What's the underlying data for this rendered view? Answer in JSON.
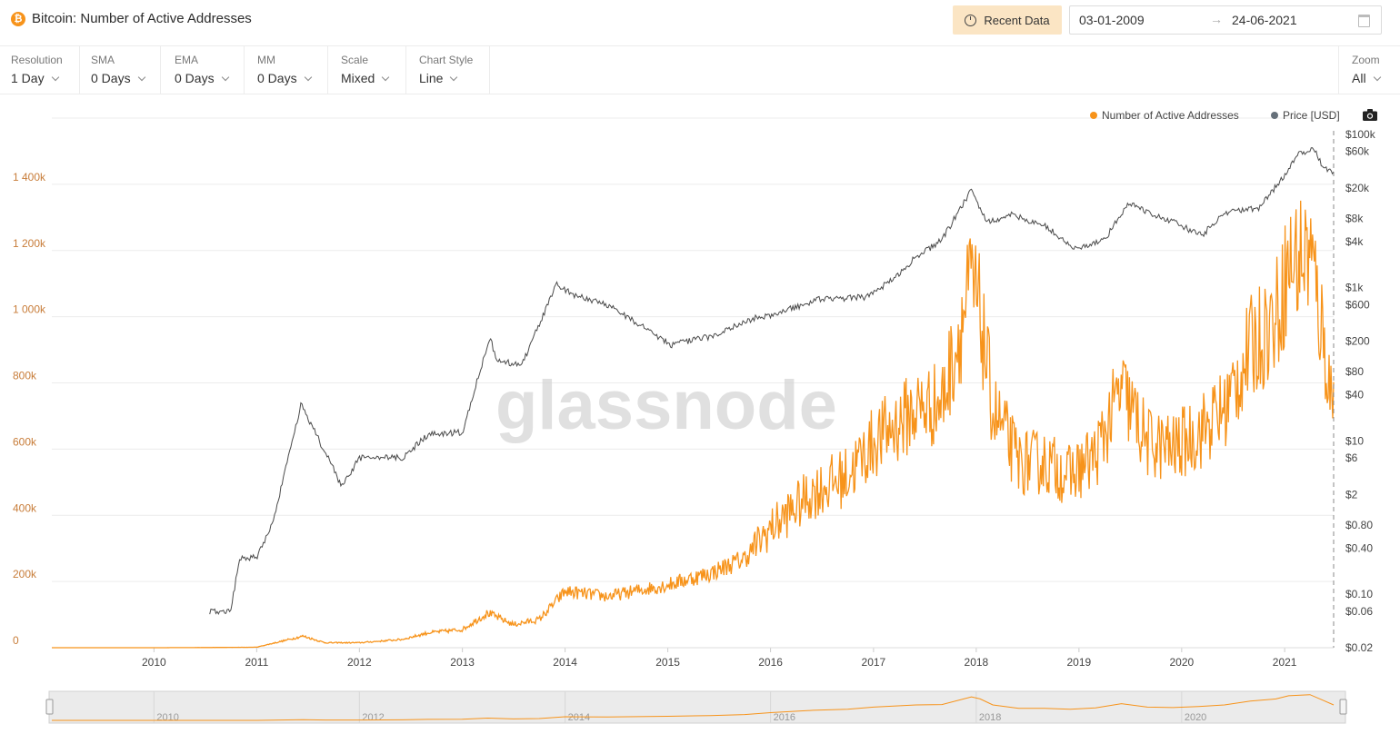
{
  "header": {
    "title": "Bitcoin: Number of Active Addresses",
    "coin_icon": "bitcoin-icon",
    "recent_button": "Recent Data",
    "date_start": "03-01-2009",
    "date_arrow": "→",
    "date_end": "24-06-2021"
  },
  "toolbar": {
    "items": [
      {
        "label": "Resolution",
        "value": "1 Day"
      },
      {
        "label": "SMA",
        "value": "0 Days"
      },
      {
        "label": "EMA",
        "value": "0 Days"
      },
      {
        "label": "MM",
        "value": "0 Days"
      },
      {
        "label": "Scale",
        "value": "Mixed"
      },
      {
        "label": "Chart Style",
        "value": "Line"
      }
    ],
    "zoom": {
      "label": "Zoom",
      "value": "All"
    }
  },
  "legend": [
    {
      "name": "Number of Active Addresses",
      "color": "#f7931a"
    },
    {
      "name": "Price [USD]",
      "color": "#66707a"
    }
  ],
  "watermark": "glassnode",
  "colors": {
    "addresses": "#f7931a",
    "price": "#4a4a4a",
    "grid": "#ececec",
    "left_axis": "#c87d3a"
  },
  "chart_data": {
    "type": "line",
    "x_range": [
      "2009-01-03",
      "2021-06-24"
    ],
    "x_ticks": [
      "2010",
      "2011",
      "2012",
      "2013",
      "2014",
      "2015",
      "2016",
      "2017",
      "2018",
      "2019",
      "2020",
      "2021"
    ],
    "left_axis": {
      "ylim": [
        0,
        1600000
      ],
      "ticks": [
        0,
        200000,
        400000,
        600000,
        800000,
        1000000,
        1200000,
        1400000
      ],
      "tick_labels": [
        "0",
        "200k",
        "400k",
        "600k",
        "800k",
        "1 000k",
        "1 200k",
        "1 400k"
      ]
    },
    "right_axis": {
      "scale": "log",
      "ylim": [
        0.02,
        100000
      ],
      "ticks": [
        0.02,
        0.06,
        0.1,
        0.4,
        0.8,
        2,
        6,
        10,
        40,
        80,
        200,
        600,
        1000,
        4000,
        8000,
        20000,
        60000,
        100000
      ],
      "tick_labels": [
        "$0.02",
        "$0.06",
        "$0.10",
        "$0.40",
        "$0.80",
        "$2",
        "$6",
        "$10",
        "$40",
        "$80",
        "$200",
        "$600",
        "$1k",
        "$4k",
        "$8k",
        "$20k",
        "$60k",
        "$100k"
      ]
    },
    "grid": true,
    "legend_position": "top-right",
    "series": [
      {
        "name": "Number of Active Addresses",
        "axis": "left",
        "points": [
          [
            "2009-01-03",
            0
          ],
          [
            "2010-01-01",
            0
          ],
          [
            "2010-07-01",
            500
          ],
          [
            "2011-01-01",
            1500
          ],
          [
            "2011-06-15",
            35000
          ],
          [
            "2011-09-01",
            15000
          ],
          [
            "2012-01-01",
            15000
          ],
          [
            "2012-06-01",
            25000
          ],
          [
            "2012-09-01",
            45000
          ],
          [
            "2013-01-01",
            55000
          ],
          [
            "2013-04-01",
            105000
          ],
          [
            "2013-07-01",
            70000
          ],
          [
            "2013-10-01",
            85000
          ],
          [
            "2014-01-01",
            170000
          ],
          [
            "2014-06-01",
            155000
          ],
          [
            "2015-01-01",
            190000
          ],
          [
            "2015-06-01",
            225000
          ],
          [
            "2015-10-01",
            270000
          ],
          [
            "2016-01-01",
            360000
          ],
          [
            "2016-06-01",
            470000
          ],
          [
            "2016-10-01",
            520000
          ],
          [
            "2017-01-01",
            620000
          ],
          [
            "2017-06-01",
            720000
          ],
          [
            "2017-09-01",
            740000
          ],
          [
            "2017-12-15",
            1100000
          ],
          [
            "2018-01-15",
            1000000
          ],
          [
            "2018-03-01",
            720000
          ],
          [
            "2018-06-01",
            560000
          ],
          [
            "2018-09-01",
            560000
          ],
          [
            "2018-12-01",
            520000
          ],
          [
            "2019-03-01",
            580000
          ],
          [
            "2019-06-01",
            780000
          ],
          [
            "2019-09-01",
            620000
          ],
          [
            "2019-12-01",
            600000
          ],
          [
            "2020-03-01",
            650000
          ],
          [
            "2020-06-01",
            720000
          ],
          [
            "2020-09-01",
            900000
          ],
          [
            "2020-12-01",
            1000000
          ],
          [
            "2021-01-15",
            1150000
          ],
          [
            "2021-04-01",
            1200000
          ],
          [
            "2021-05-15",
            950000
          ],
          [
            "2021-06-24",
            720000
          ]
        ]
      },
      {
        "name": "Price [USD]",
        "axis": "right",
        "points": [
          [
            "2010-07-18",
            0.06
          ],
          [
            "2010-10-01",
            0.06
          ],
          [
            "2010-11-01",
            0.3
          ],
          [
            "2011-01-01",
            0.3
          ],
          [
            "2011-03-01",
            0.9
          ],
          [
            "2011-06-08",
            30
          ],
          [
            "2011-08-01",
            12
          ],
          [
            "2011-11-01",
            2.5
          ],
          [
            "2012-01-01",
            6
          ],
          [
            "2012-06-01",
            6
          ],
          [
            "2012-09-01",
            12
          ],
          [
            "2013-01-01",
            13
          ],
          [
            "2013-04-09",
            230
          ],
          [
            "2013-05-01",
            110
          ],
          [
            "2013-08-01",
            100
          ],
          [
            "2013-11-30",
            1100
          ],
          [
            "2014-02-01",
            800
          ],
          [
            "2014-06-01",
            600
          ],
          [
            "2015-01-14",
            180
          ],
          [
            "2015-06-01",
            230
          ],
          [
            "2015-11-04",
            400
          ],
          [
            "2016-01-01",
            430
          ],
          [
            "2016-06-16",
            700
          ],
          [
            "2016-12-01",
            750
          ],
          [
            "2017-03-01",
            1200
          ],
          [
            "2017-06-01",
            2500
          ],
          [
            "2017-09-01",
            4200
          ],
          [
            "2017-12-17",
            19500
          ],
          [
            "2018-02-06",
            7000
          ],
          [
            "2018-05-01",
            9000
          ],
          [
            "2018-09-01",
            6500
          ],
          [
            "2018-12-15",
            3200
          ],
          [
            "2019-04-01",
            4100
          ],
          [
            "2019-06-26",
            13000
          ],
          [
            "2019-09-01",
            9800
          ],
          [
            "2019-12-01",
            7200
          ],
          [
            "2020-03-12",
            4800
          ],
          [
            "2020-06-01",
            9500
          ],
          [
            "2020-10-01",
            10800
          ],
          [
            "2020-12-31",
            29000
          ],
          [
            "2021-02-21",
            57000
          ],
          [
            "2021-04-14",
            63500
          ],
          [
            "2021-05-19",
            37000
          ],
          [
            "2021-06-24",
            33000
          ]
        ]
      }
    ]
  }
}
